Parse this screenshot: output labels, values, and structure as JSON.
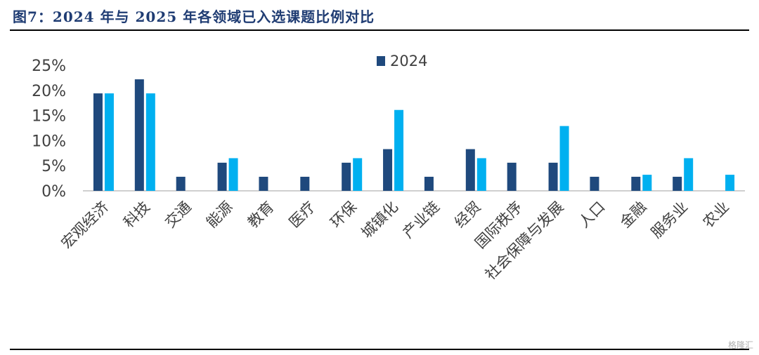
{
  "title": "图7：2024 年与 2025 年各领域已入选课题比例对比",
  "watermark": "格隆汇",
  "colors": {
    "s2024": "#1f497d",
    "s2025": "#00b0f0",
    "axis": "#bfbfbf",
    "text": "#404040"
  },
  "chart_data": {
    "type": "bar",
    "title": "",
    "xlabel": "",
    "ylabel": "",
    "ylim": [
      0,
      25
    ],
    "yticks": [
      "0%",
      "5%",
      "10%",
      "15%",
      "20%",
      "25%"
    ],
    "legend_position": "top-center",
    "grid": false,
    "categories": [
      "宏观经济",
      "科技",
      "交通",
      "能源",
      "教育",
      "医疗",
      "环保",
      "城镇化",
      "产业链",
      "经贸",
      "国际秩序",
      "社会保障与发展",
      "人口",
      "金融",
      "服务业",
      "农业"
    ],
    "series": [
      {
        "name": "2024",
        "values": [
          19.4,
          22.2,
          2.8,
          5.6,
          2.8,
          2.8,
          5.6,
          8.3,
          2.8,
          8.3,
          5.6,
          5.6,
          2.8,
          2.8,
          2.8,
          0
        ]
      },
      {
        "name": "",
        "values": [
          19.4,
          19.4,
          0,
          6.5,
          0,
          0,
          6.5,
          16.1,
          0,
          6.5,
          0,
          12.9,
          0,
          3.2,
          6.5,
          3.2
        ]
      }
    ]
  }
}
